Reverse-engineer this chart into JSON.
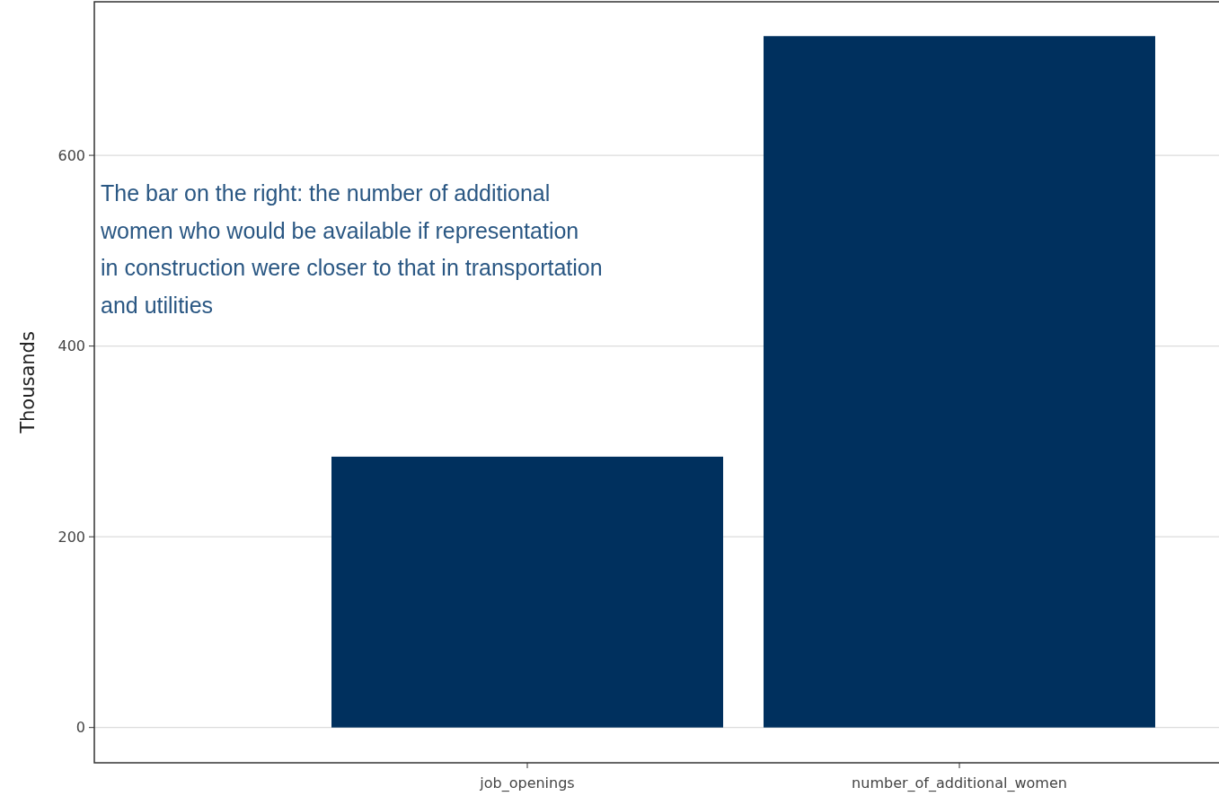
{
  "chart_data": {
    "type": "bar",
    "ylabel": "Thousands",
    "categories": [
      "job_openings",
      "number_of_additional_women"
    ],
    "values": [
      284,
      725
    ],
    "color": "#00305e",
    "ylim": [
      -37,
      761
    ],
    "yticks": [
      0,
      200,
      400,
      600
    ],
    "grid": "y",
    "annotations": [
      "The bar on the right: the number of additional\nwomen who would be available if representation\nin construction were closer to that in transportation\nand utilities"
    ]
  }
}
